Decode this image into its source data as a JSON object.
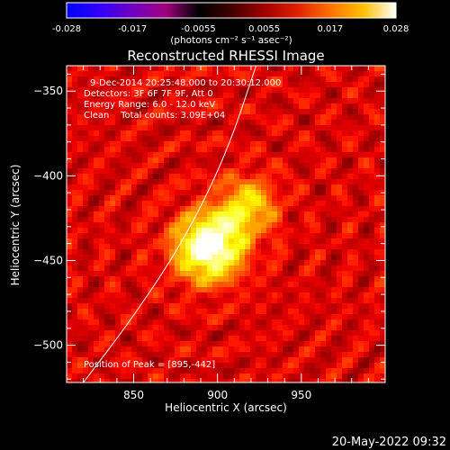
{
  "chart_data": {
    "type": "heatmap",
    "title": "Reconstructed RHESSI Image",
    "xlabel": "Heliocentric X (arcsec)",
    "ylabel": "Heliocentric Y (arcsec)",
    "xlim": [
      810,
      1000
    ],
    "ylim": [
      -522,
      -335
    ],
    "x_ticks": [
      850,
      900,
      950
    ],
    "y_ticks": [
      -350,
      -400,
      -450,
      -500
    ],
    "colorbar": {
      "ticks": [
        "-0.028",
        "-0.017",
        "-0.0055",
        "0.0055",
        "0.017",
        "0.028"
      ],
      "range": [
        -0.028,
        0.028
      ],
      "unit_label": "(photons cm⁻² s⁻¹ asec⁻²)",
      "colormap": [
        "#0000ff",
        "#3000ff",
        "#7000c0",
        "#a00080",
        "#000000",
        "#400000",
        "#a00000",
        "#e02000",
        "#ff7000",
        "#ffc000",
        "#ffffff"
      ]
    },
    "annotations": [
      "9-Dec-2014 20:25:48.000 to 20:30:12.000",
      "Detectors: 3F 6F 7F 9F, Att 0",
      "Energy Range: 6.0 - 12.0 keV",
      "Clean    Total counts: 3.09E+04"
    ],
    "peak_label": "Position of Peak = [895,-442]",
    "sources": [
      {
        "x": 895,
        "y": -442,
        "strength": 1.0
      },
      {
        "x": 918,
        "y": -418,
        "strength": 0.55
      }
    ],
    "limb_curve": [
      [
        820,
        -522
      ],
      [
        850,
        -483
      ],
      [
        880,
        -438
      ],
      [
        905,
        -388
      ],
      [
        923,
        -335
      ]
    ]
  },
  "footer_date": "20-May-2022 09:32"
}
